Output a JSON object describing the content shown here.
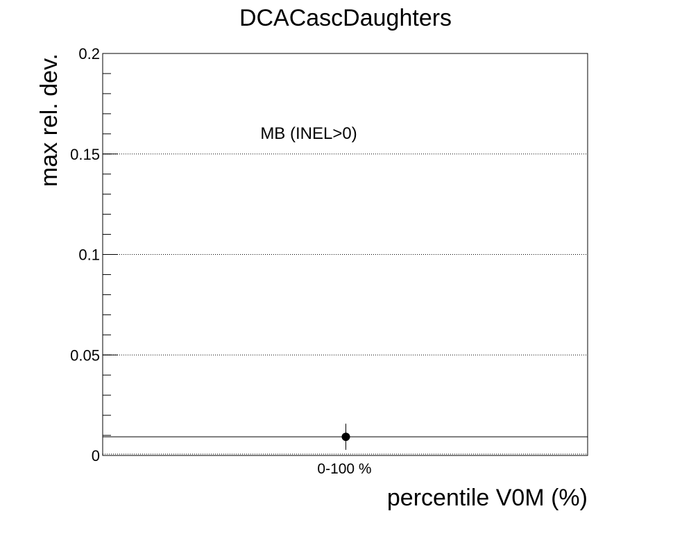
{
  "chart_data": {
    "type": "scatter",
    "title": "DCACascDaughters",
    "xlabel": "percentile V0M (%)",
    "ylabel": "max rel. dev.",
    "categories": [
      "0-100 %"
    ],
    "ylim": [
      0,
      0.2
    ],
    "yticks": [
      {
        "value": 0,
        "label": "0"
      },
      {
        "value": 0.05,
        "label": "0.05"
      },
      {
        "value": 0.1,
        "label": "0.1"
      },
      {
        "value": 0.15,
        "label": "0.15"
      },
      {
        "value": 0.2,
        "label": "0.2"
      }
    ],
    "grid": "horizontal dotted",
    "series": [
      {
        "values": [
          0.0093
        ],
        "errors": [
          0.0065
        ],
        "marker": "filled-circle",
        "color": "#000000"
      }
    ],
    "reference_line": {
      "y": 0.0093
    },
    "annotation": "MB (INEL>0)"
  }
}
